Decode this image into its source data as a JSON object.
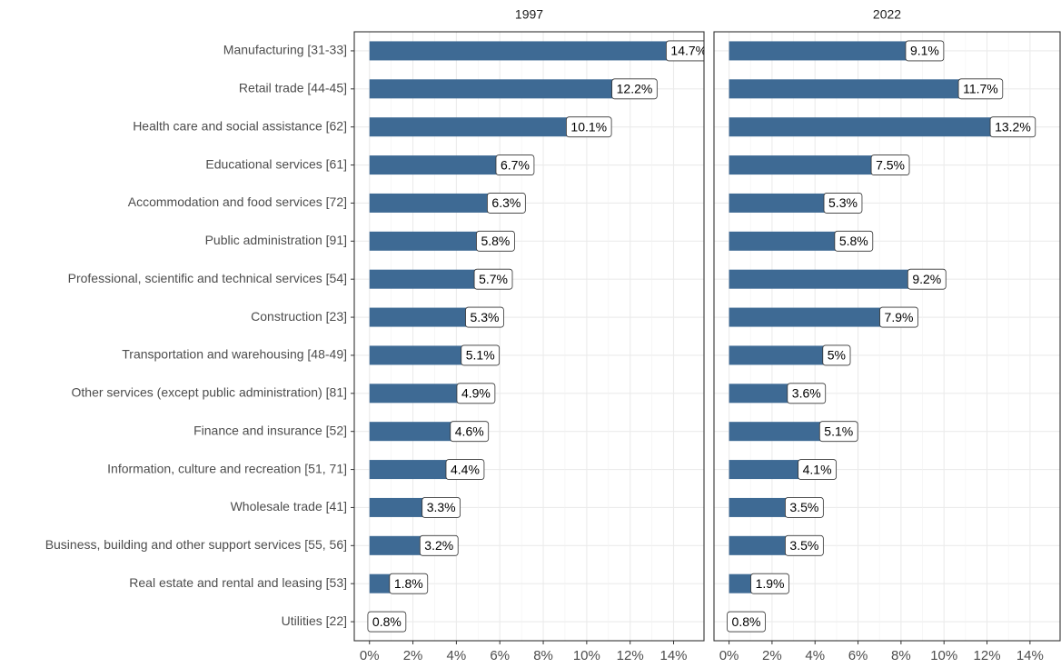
{
  "chart_data": {
    "type": "bar",
    "orientation": "horizontal",
    "facets": true,
    "categories": [
      "Manufacturing [31-33]",
      "Retail trade [44-45]",
      "Health care and social assistance [62]",
      "Educational services [61]",
      "Accommodation and food services [72]",
      "Public administration [91]",
      "Professional, scientific and technical services [54]",
      "Construction [23]",
      "Transportation and warehousing [48-49]",
      "Other services (except public administration) [81]",
      "Finance and insurance [52]",
      "Information, culture and recreation [51, 71]",
      "Wholesale trade [41]",
      "Business, building and other support services [55, 56]",
      "Real estate and rental and leasing [53]",
      "Utilities [22]"
    ],
    "series": [
      {
        "name": "1997",
        "color": "#3e6a94",
        "values": [
          14.7,
          12.2,
          10.1,
          6.7,
          6.3,
          5.8,
          5.7,
          5.3,
          5.1,
          4.9,
          4.6,
          4.4,
          3.3,
          3.2,
          1.8,
          0.8
        ],
        "value_labels": [
          "14.7%",
          "12.2%",
          "10.1%",
          "6.7%",
          "6.3%",
          "5.8%",
          "5.7%",
          "5.3%",
          "5.1%",
          "4.9%",
          "4.6%",
          "4.4%",
          "3.3%",
          "3.2%",
          "1.8%",
          "0.8%"
        ]
      },
      {
        "name": "2022",
        "color": "#3e6a94",
        "values": [
          9.1,
          11.7,
          13.2,
          7.5,
          5.3,
          5.8,
          9.2,
          7.9,
          5,
          3.6,
          5.1,
          4.1,
          3.5,
          3.5,
          1.9,
          0.8
        ],
        "value_labels": [
          "9.1%",
          "11.7%",
          "13.2%",
          "7.5%",
          "5.3%",
          "5.8%",
          "9.2%",
          "7.9%",
          "5%",
          "3.6%",
          "5.1%",
          "4.1%",
          "3.5%",
          "3.5%",
          "1.9%",
          "0.8%"
        ]
      }
    ],
    "xlim": [
      -0.7,
      15.4
    ],
    "xticks": [
      {
        "value": 0,
        "label": "0%"
      },
      {
        "value": 2,
        "label": "2%"
      },
      {
        "value": 4,
        "label": "4%"
      },
      {
        "value": 6,
        "label": "6%"
      },
      {
        "value": 8,
        "label": "8%"
      },
      {
        "value": 10,
        "label": "10%"
      },
      {
        "value": 12,
        "label": "12%"
      },
      {
        "value": 14,
        "label": "14%"
      }
    ],
    "grid": true
  }
}
